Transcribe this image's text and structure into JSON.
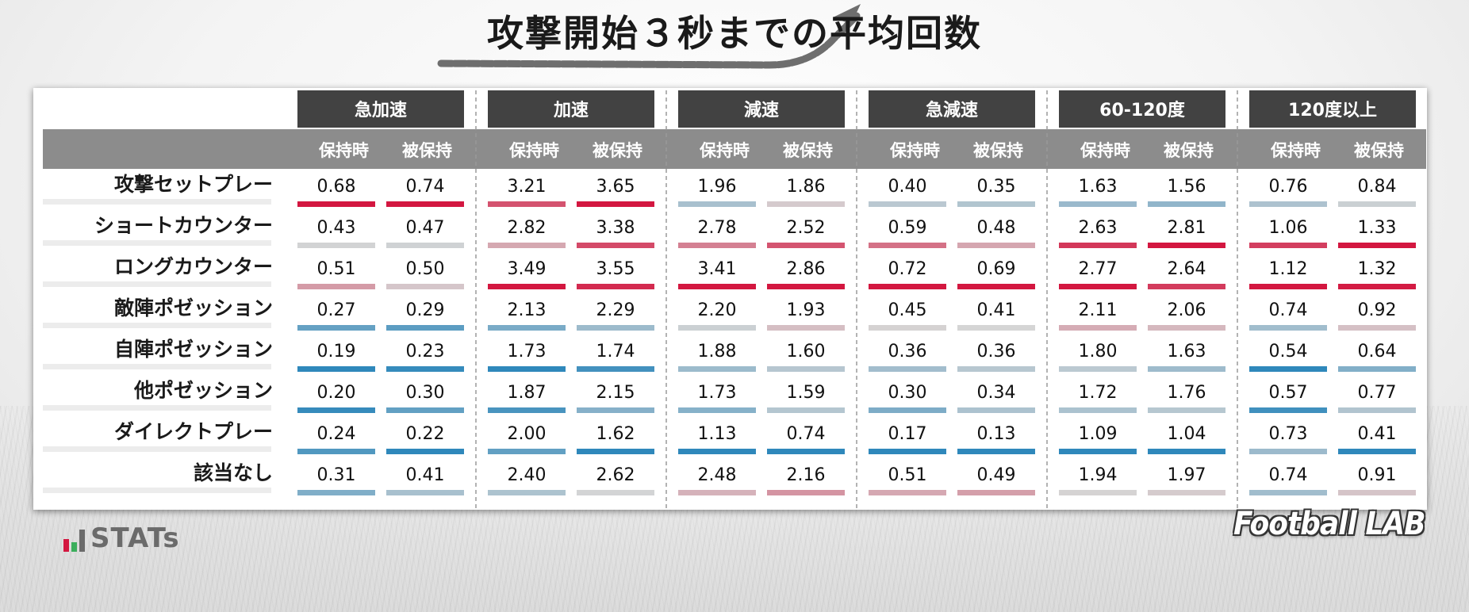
{
  "title": "攻撃開始３秒までの平均回数",
  "brand": {
    "left": "STATs",
    "right": "Football LAB"
  },
  "colors": {
    "header_dark": "#424242",
    "header_gray": "#8c8c8c",
    "high": "#d31740",
    "low": "#2f88bb",
    "mid": "#d5d5d5"
  },
  "chart_data": {
    "type": "table",
    "title": "攻撃開始３秒までの平均回数",
    "groups": [
      "急加速",
      "加速",
      "減速",
      "急減速",
      "60-120度",
      "120度以上"
    ],
    "subcolumns": [
      "保持時",
      "被保持"
    ],
    "rows": [
      {
        "label": "攻撃セットプレー",
        "values": [
          "0.68",
          "0.74",
          "3.21",
          "3.65",
          "1.96",
          "1.86",
          "0.40",
          "0.35",
          "1.63",
          "1.56",
          "0.76",
          "0.84"
        ]
      },
      {
        "label": "ショートカウンター",
        "values": [
          "0.43",
          "0.47",
          "2.82",
          "3.38",
          "2.78",
          "2.52",
          "0.59",
          "0.48",
          "2.63",
          "2.81",
          "1.06",
          "1.33"
        ]
      },
      {
        "label": "ロングカウンター",
        "values": [
          "0.51",
          "0.50",
          "3.49",
          "3.55",
          "3.41",
          "2.86",
          "0.72",
          "0.69",
          "2.77",
          "2.64",
          "1.12",
          "1.32"
        ]
      },
      {
        "label": "敵陣ポゼッション",
        "values": [
          "0.27",
          "0.29",
          "2.13",
          "2.29",
          "2.20",
          "1.93",
          "0.45",
          "0.41",
          "2.11",
          "2.06",
          "0.74",
          "0.92"
        ]
      },
      {
        "label": "自陣ポゼッション",
        "values": [
          "0.19",
          "0.23",
          "1.73",
          "1.74",
          "1.88",
          "1.60",
          "0.36",
          "0.36",
          "1.80",
          "1.63",
          "0.54",
          "0.64"
        ]
      },
      {
        "label": "他ポゼッション",
        "values": [
          "0.20",
          "0.30",
          "1.87",
          "2.15",
          "1.73",
          "1.59",
          "0.30",
          "0.34",
          "1.72",
          "1.76",
          "0.57",
          "0.77"
        ]
      },
      {
        "label": "ダイレクトプレー",
        "values": [
          "0.24",
          "0.22",
          "2.00",
          "1.62",
          "1.13",
          "0.74",
          "0.17",
          "0.13",
          "1.09",
          "1.04",
          "0.73",
          "0.41"
        ]
      },
      {
        "label": "該当なし",
        "values": [
          "0.31",
          "0.41",
          "2.40",
          "2.62",
          "2.48",
          "2.16",
          "0.51",
          "0.49",
          "1.94",
          "1.97",
          "0.74",
          "0.91"
        ]
      }
    ]
  }
}
